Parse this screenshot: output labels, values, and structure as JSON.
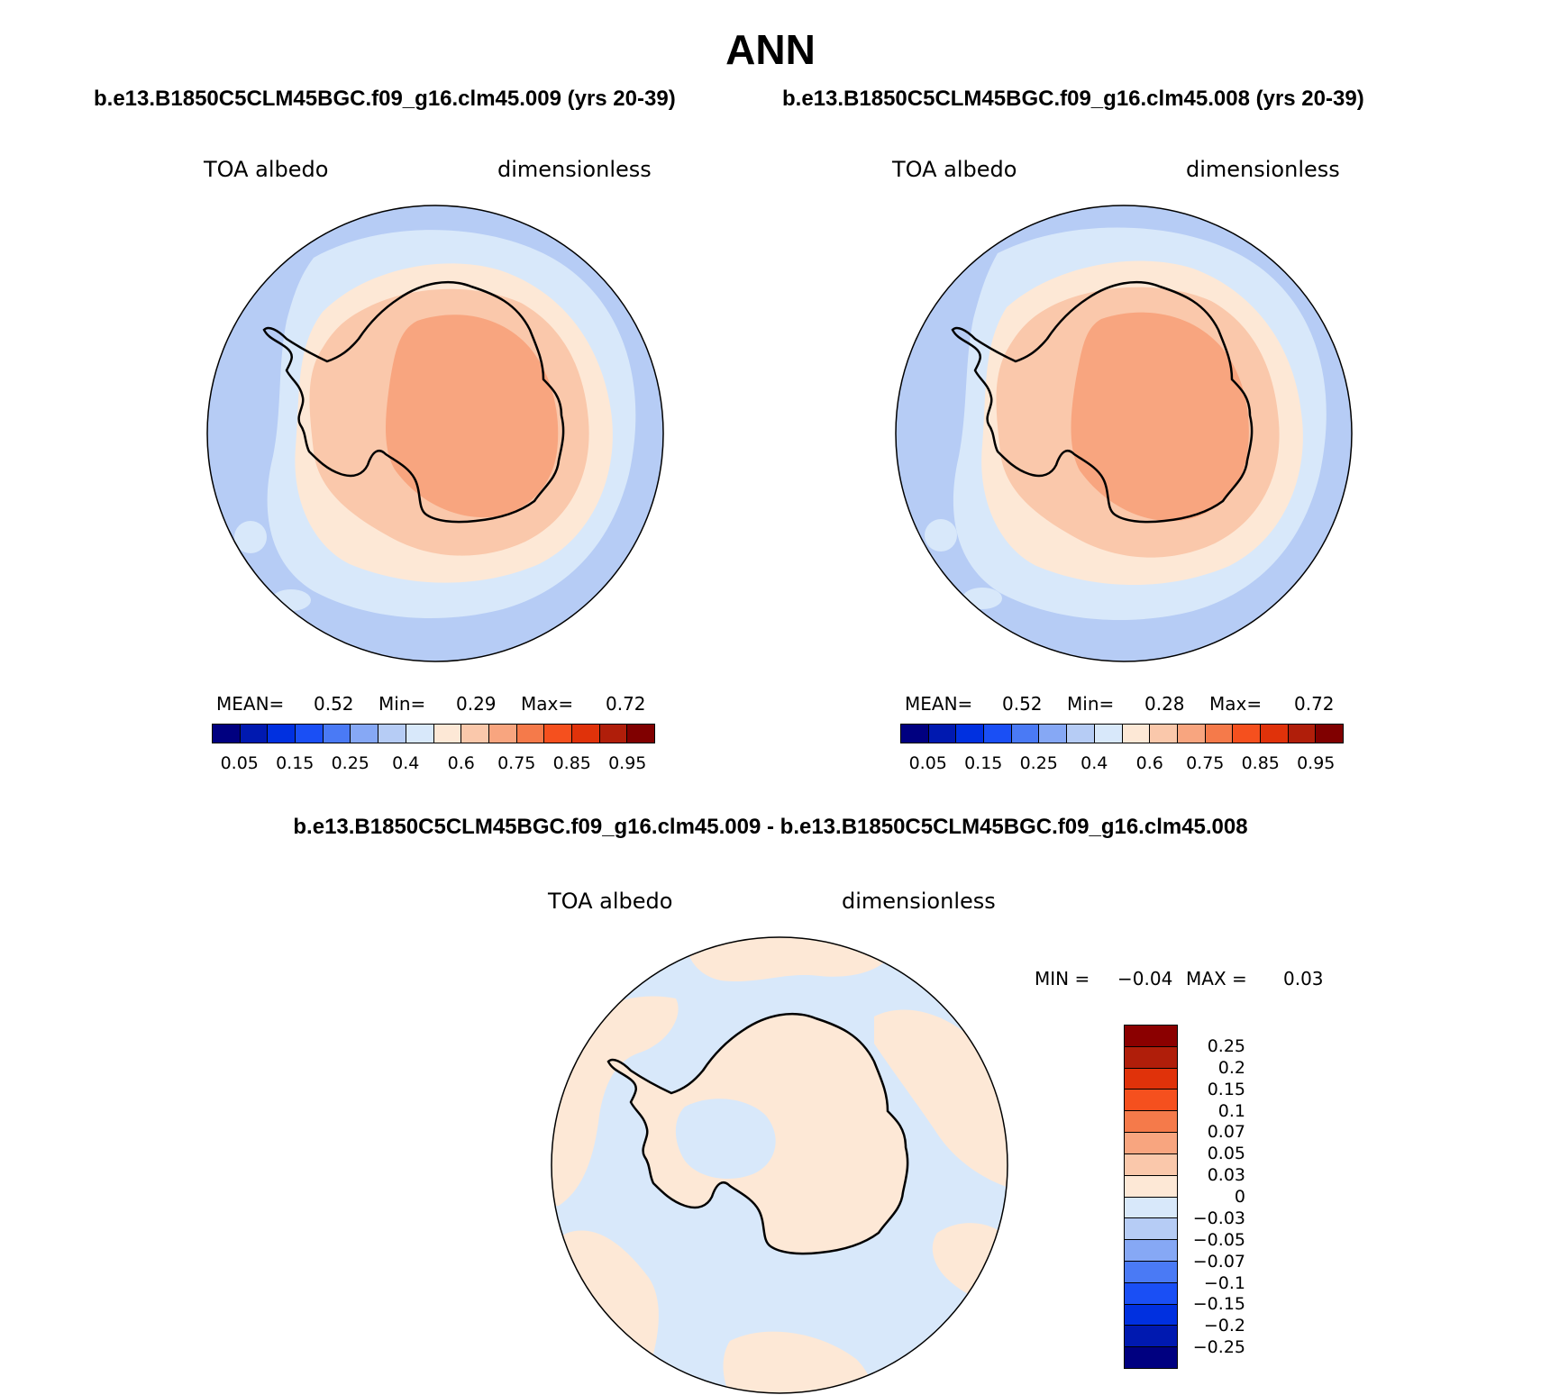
{
  "main_title": "ANN",
  "panels": {
    "left": {
      "case_title": "b.e13.B1850C5CLM45BGC.f09_g16.clm45.009 (yrs 20-39)",
      "var_label": "TOA albedo",
      "units_label": "dimensionless",
      "mean_label": "MEAN=",
      "mean_value": "0.52",
      "min_label": "Min=",
      "min_value": "0.29",
      "max_label": "Max=",
      "max_value": "0.72"
    },
    "right": {
      "case_title": "b.e13.B1850C5CLM45BGC.f09_g16.clm45.008 (yrs 20-39)",
      "var_label": "TOA albedo",
      "units_label": "dimensionless",
      "mean_label": "MEAN=",
      "mean_value": "0.52",
      "min_label": "Min=",
      "min_value": "0.28",
      "max_label": "Max=",
      "max_value": "0.72"
    },
    "diff": {
      "title": "b.e13.B1850C5CLM45BGC.f09_g16.clm45.009 - b.e13.B1850C5CLM45BGC.f09_g16.clm45.008",
      "var_label": "TOA albedo",
      "units_label": "dimensionless",
      "min_label": "MIN =",
      "min_value": "−0.04",
      "max_label": "MAX =",
      "max_value": "0.03"
    }
  },
  "colorbar_abs": {
    "colors": [
      "#000080",
      "#0019b0",
      "#0030e0",
      "#1a4ff5",
      "#4a7af5",
      "#86a8f5",
      "#b6ccf5",
      "#d8e8fa",
      "#fde8d6",
      "#fac8ab",
      "#f8a57f",
      "#f57a4a",
      "#f5501e",
      "#e0320a",
      "#b01e0a",
      "#800000"
    ],
    "tick_labels": [
      "0.05",
      "0.15",
      "0.25",
      "0.4",
      "0.6",
      "0.75",
      "0.85",
      "0.95"
    ]
  },
  "colorbar_diff": {
    "colors_top_to_bottom": [
      "#8b0000",
      "#b01e0a",
      "#e0320a",
      "#f5501e",
      "#f57a4a",
      "#f8a57f",
      "#fac8ab",
      "#fde8d6",
      "#d8e8fa",
      "#b6ccf5",
      "#86a8f5",
      "#4a7af5",
      "#1a4ff5",
      "#0030e0",
      "#0019b0",
      "#000080"
    ],
    "tick_labels_top_to_bottom": [
      "0.25",
      "0.2",
      "0.15",
      "0.1",
      "0.07",
      "0.05",
      "0.03",
      "0",
      "−0.03",
      "−0.05",
      "−0.07",
      "−0.1",
      "−0.15",
      "−0.2",
      "−0.25"
    ]
  },
  "map_colors": {
    "ocean_outer": "#b6ccf5",
    "ocean_mid": "#d8e8fa",
    "sea_ice": "#fde8d6",
    "coast_ice": "#fac8ab",
    "plateau": "#f8a57f",
    "diff_neg": "#d8e8fa",
    "diff_pos": "#fde8d6",
    "coastline": "#000000"
  }
}
